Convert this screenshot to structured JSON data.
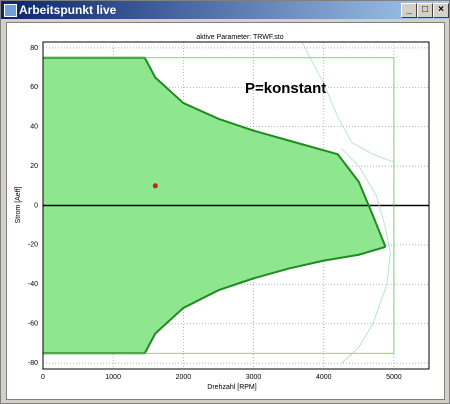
{
  "window": {
    "title": "Arbeitspunkt live"
  },
  "chart_data": {
    "type": "area",
    "title": "aktive Parameter: TRWF.sto",
    "xlabel": "Drehzahl [RPM]",
    "ylabel": "Strom [Aeff]",
    "annotation": "P=konstant",
    "xlim": [
      0,
      5500
    ],
    "ylim": [
      -83,
      83
    ],
    "xticks": [
      0,
      1000,
      2000,
      3000,
      4000,
      5000
    ],
    "yticks": [
      -80,
      -60,
      -40,
      -20,
      0,
      20,
      40,
      60,
      80
    ],
    "grid": true,
    "fill": "#8ee68e",
    "series": [
      {
        "style": "thick",
        "color": "#1e8c1e",
        "x": [
          0,
          1450,
          1600,
          2000,
          2500,
          3000,
          3500,
          4000,
          4200,
          4500,
          4700,
          4880
        ],
        "values": [
          75,
          75,
          65,
          52,
          44,
          38,
          33,
          28,
          26,
          12,
          -5,
          -21
        ]
      },
      {
        "style": "thick",
        "color": "#1e8c1e",
        "x": [
          0,
          1450,
          1600,
          2000,
          2500,
          3000,
          3500,
          4000,
          4500,
          4880
        ],
        "values": [
          -75,
          -75,
          -65,
          -52,
          -43,
          -37,
          -32,
          -28,
          -25,
          -21
        ]
      },
      {
        "style": "thin",
        "color": "#5cc85c",
        "x": [
          0,
          5000,
          5000,
          0,
          0
        ],
        "values": [
          75,
          75,
          -75,
          -75,
          75
        ]
      },
      {
        "style": "thin",
        "color": "#a8e0c0",
        "x": [
          3690,
          4000,
          4200,
          4400,
          4700,
          5000
        ],
        "values": [
          83,
          62,
          45,
          32,
          26,
          22
        ]
      },
      {
        "style": "thin",
        "color": "#a8e0c0",
        "x": [
          4250,
          4500,
          4750,
          4870,
          4950,
          4900,
          4700,
          4500,
          4260
        ],
        "values": [
          29,
          20,
          5,
          -10,
          -24,
          -40,
          -60,
          -72,
          -80
        ]
      },
      {
        "style": "point",
        "color": "#b03020",
        "x": [
          1600
        ],
        "values": [
          10
        ]
      }
    ]
  }
}
